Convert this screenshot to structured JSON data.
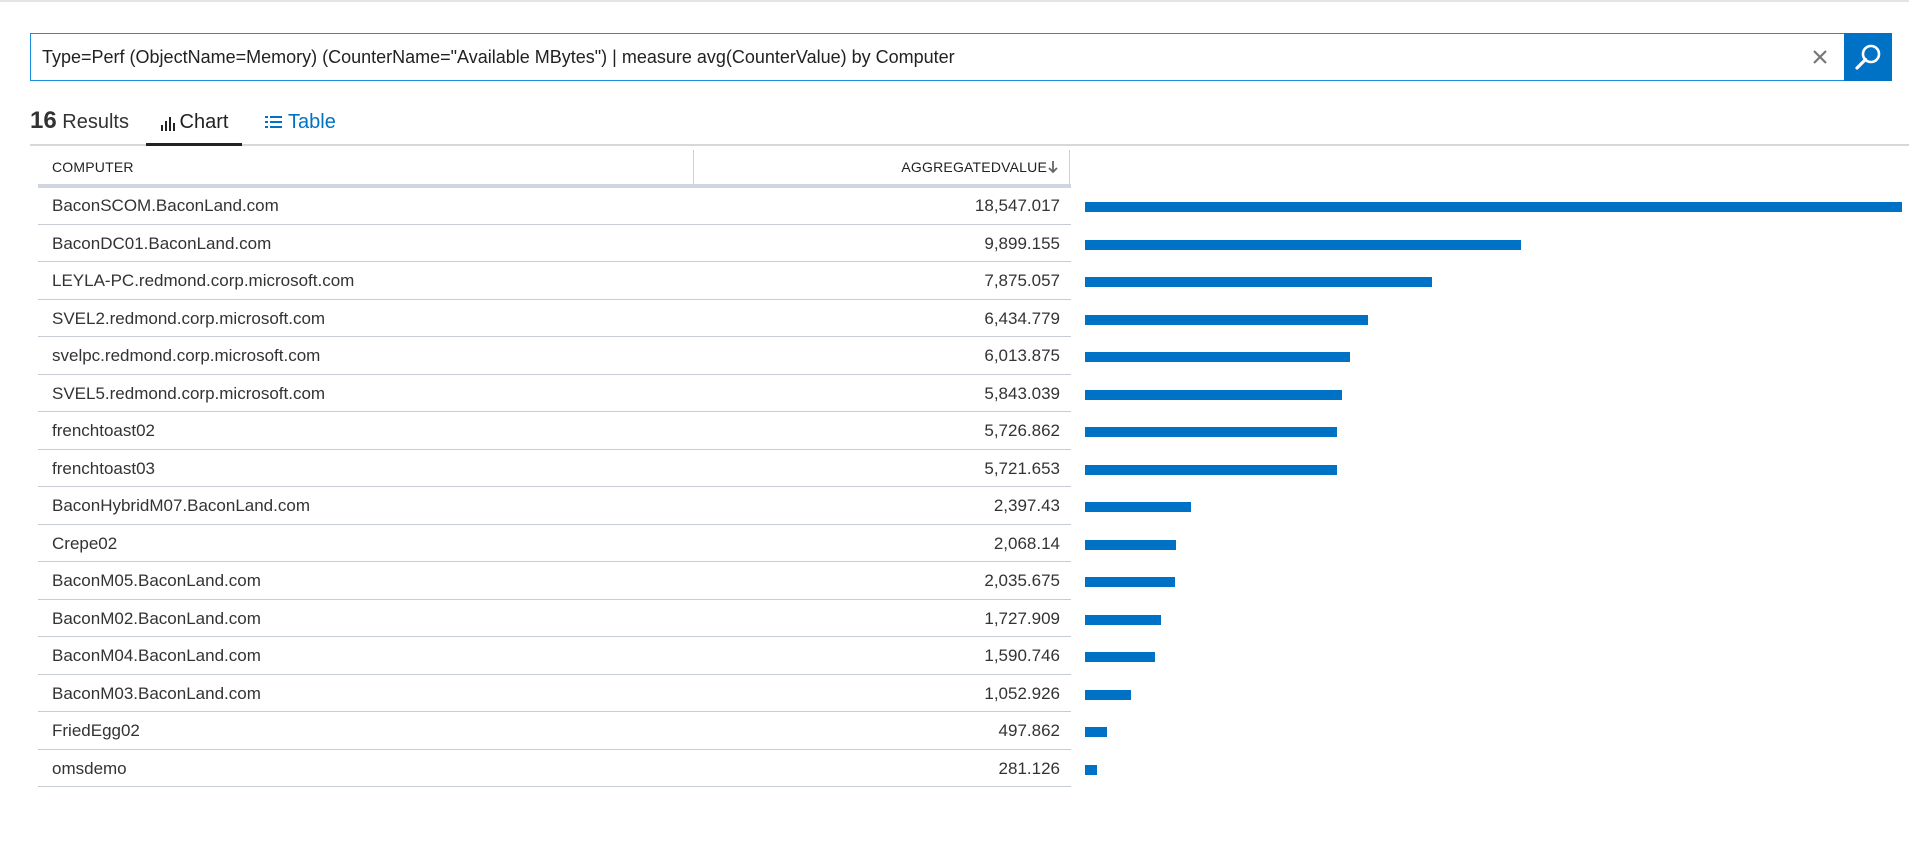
{
  "search": {
    "query": "Type=Perf (ObjectName=Memory) (CounterName=\"Available MBytes\") | measure avg(CounterValue) by Computer"
  },
  "results": {
    "count": "16",
    "label": "Results"
  },
  "tabs": {
    "chart": "Chart",
    "table": "Table"
  },
  "columns": {
    "computer": "COMPUTER",
    "value": "AGGREGATEDVALUE"
  },
  "colors": {
    "accent": "#0072c6",
    "bar": "#0072c6"
  },
  "chart_data": {
    "type": "bar",
    "orientation": "horizontal",
    "categories": [
      "BaconSCOM.BaconLand.com",
      "BaconDC01.BaconLand.com",
      "LEYLA-PC.redmond.corp.microsoft.com",
      "SVEL2.redmond.corp.microsoft.com",
      "svelpc.redmond.corp.microsoft.com",
      "SVEL5.redmond.corp.microsoft.com",
      "frenchtoast02",
      "frenchtoast03",
      "BaconHybridM07.BaconLand.com",
      "Crepe02",
      "BaconM05.BaconLand.com",
      "BaconM02.BaconLand.com",
      "BaconM04.BaconLand.com",
      "BaconM03.BaconLand.com",
      "FriedEgg02",
      "omsdemo"
    ],
    "values": [
      18547.017,
      9899.155,
      7875.057,
      6434.779,
      6013.875,
      5843.039,
      5726.862,
      5721.653,
      2397.43,
      2068.14,
      2035.675,
      1727.909,
      1590.746,
      1052.926,
      497.862,
      281.126
    ],
    "labels": [
      "18,547.017",
      "9,899.155",
      "7,875.057",
      "6,434.779",
      "6,013.875",
      "5,843.039",
      "5,726.862",
      "5,721.653",
      "2,397.43",
      "2,068.14",
      "2,035.675",
      "1,727.909",
      "1,590.746",
      "1,052.926",
      "497.862",
      "281.126"
    ],
    "sort": "descending",
    "title": "",
    "xlabel": "",
    "ylabel": ""
  }
}
